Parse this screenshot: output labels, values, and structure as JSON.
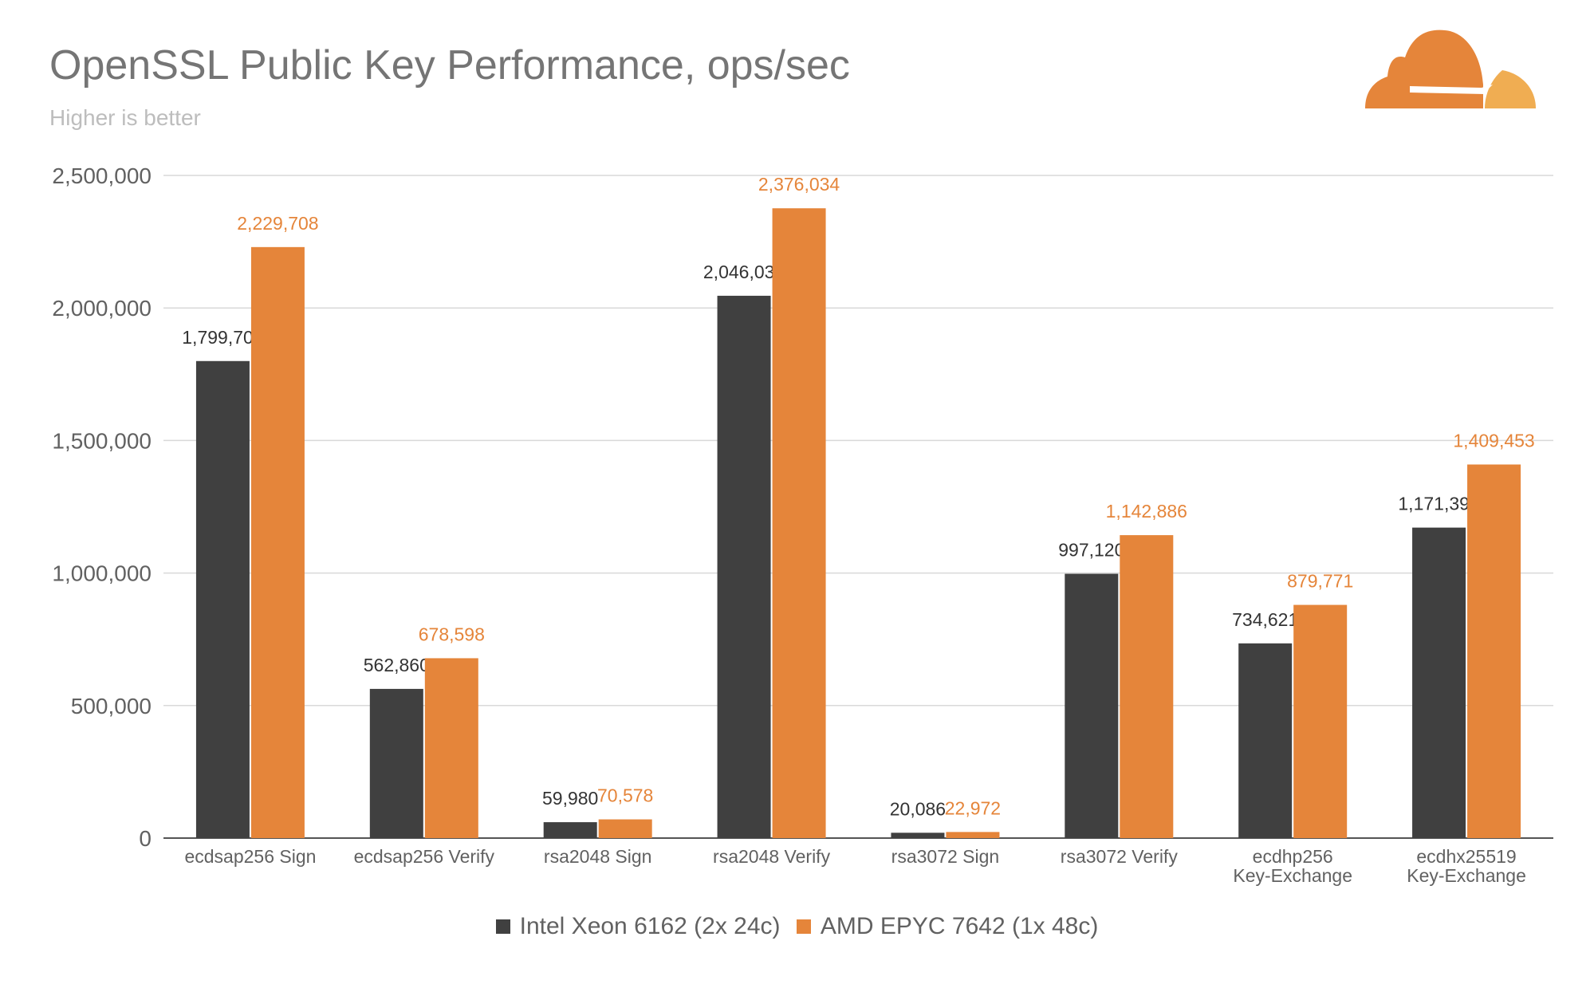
{
  "chart_data": {
    "type": "bar",
    "title": "OpenSSL Public Key Performance, ops/sec",
    "subtitle": "Higher is better",
    "xlabel": "",
    "ylabel": "",
    "ylim": [
      0,
      2500000
    ],
    "yticks": [
      0,
      500000,
      1000000,
      1500000,
      2000000,
      2500000
    ],
    "ytick_labels": [
      "0",
      "500,000",
      "1,000,000",
      "1,500,000",
      "2,000,000",
      "2,500,000"
    ],
    "grid": true,
    "legend_position": "bottom",
    "categories": [
      "ecdsap256 Sign",
      "ecdsap256 Verify",
      "rsa2048 Sign",
      "rsa2048 Verify",
      "rsa3072 Sign",
      "rsa3072 Verify",
      "ecdhp256\nKey-Exchange",
      "ecdhx25519\nKey-Exchange"
    ],
    "series": [
      {
        "name": "Intel Xeon 6162 (2x 24c)",
        "color": "#404040",
        "values": [
          1799709,
          562860,
          59980,
          2046030,
          20086,
          997120,
          734621,
          1171393
        ],
        "labels": [
          "1,799,709",
          "562,860",
          "59,980",
          "2,046,030",
          "20,086",
          "997,120",
          "734,621",
          "1,171,393"
        ]
      },
      {
        "name": "AMD EPYC 7642 (1x 48c)",
        "color": "#e5853a",
        "values": [
          2229708,
          678598,
          70578,
          2376034,
          22972,
          1142886,
          879771,
          1409453
        ],
        "labels": [
          "2,229,708",
          "678,598",
          "70,578",
          "2,376,034",
          "22,972",
          "1,142,886",
          "879,771",
          "1,409,453"
        ]
      }
    ]
  },
  "logo": {
    "name": "cloudflare-logo",
    "colors": [
      "#e5853a",
      "#f0ad52"
    ]
  }
}
